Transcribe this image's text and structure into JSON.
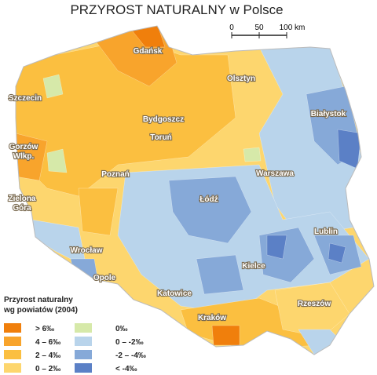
{
  "title": "PRZYROST NATURALNY w Polsce",
  "scale": {
    "labels": [
      "0",
      "50",
      "100 km"
    ]
  },
  "cities": [
    {
      "lines": [
        "Gdańsk"
      ]
    },
    {
      "lines": [
        "Olsztyn"
      ]
    },
    {
      "lines": [
        "Szczecin"
      ]
    },
    {
      "lines": [
        "Białystok"
      ]
    },
    {
      "lines": [
        "Bydgoszcz"
      ]
    },
    {
      "lines": [
        "Toruń"
      ]
    },
    {
      "lines": [
        "Gorzów",
        "Wlkp."
      ]
    },
    {
      "lines": [
        "Poznań"
      ]
    },
    {
      "lines": [
        "Warszawa"
      ]
    },
    {
      "lines": [
        "Łódź"
      ]
    },
    {
      "lines": [
        "Zielona",
        "Góra"
      ]
    },
    {
      "lines": [
        "Lublin"
      ]
    },
    {
      "lines": [
        "Wrocław"
      ]
    },
    {
      "lines": [
        "Kielce"
      ]
    },
    {
      "lines": [
        "Opole"
      ]
    },
    {
      "lines": [
        "Katowice"
      ]
    },
    {
      "lines": [
        "Rzeszów"
      ]
    },
    {
      "lines": [
        "Kraków"
      ]
    }
  ],
  "legend": {
    "title": [
      "Przyrost naturalny",
      "wg powiatów (2004)"
    ],
    "items": [
      {
        "label": "> 6‰",
        "color": "#f07f0c"
      },
      {
        "label": "4 – 6‰",
        "color": "#f8a42c"
      },
      {
        "label": "2 – 4‰",
        "color": "#fbbf40"
      },
      {
        "label": "0 – 2‰",
        "color": "#fdd66e"
      },
      {
        "label": "0‰",
        "color": "#d6e9a9"
      },
      {
        "label": "0 – -2‰",
        "color": "#b9d4eb"
      },
      {
        "label": "-2 – -4‰",
        "color": "#86a9d8"
      },
      {
        "label": "< -4‰",
        "color": "#5b80c6"
      }
    ]
  }
}
